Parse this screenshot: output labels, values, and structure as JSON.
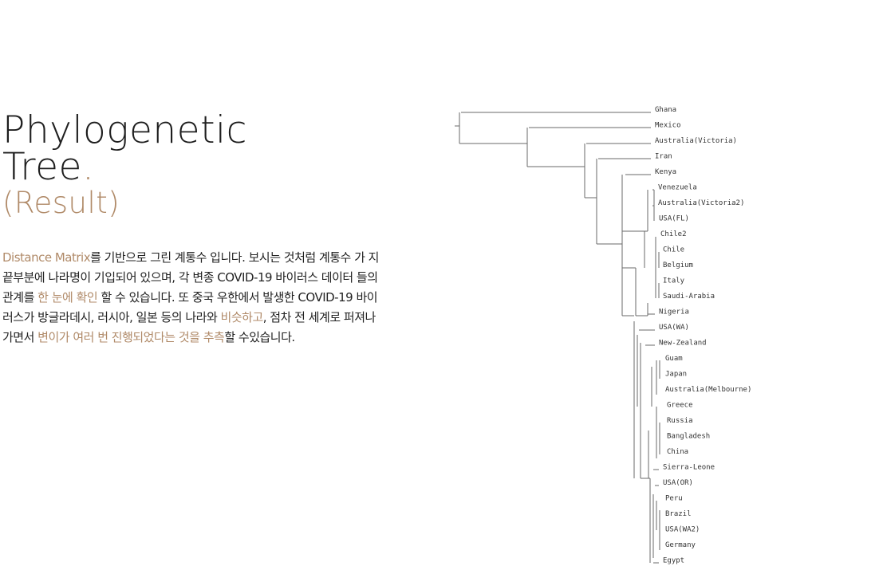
{
  "title": {
    "line1": "Phylogenetic",
    "line2": "Tree",
    "dot": ".",
    "subtitle": "(Result)"
  },
  "description": {
    "segments": [
      {
        "text": "Distance Matrix",
        "highlight": true
      },
      {
        "text": "를 기반으로 그린 계통수 입니다. 보시는 것처럼 계통수 가 지 끝부분에 나라명이 기입되어 있으며, 각 변종 COVID-19 바이러스 데이터 들의 관계를 ",
        "highlight": false
      },
      {
        "text": "한 눈에 확인",
        "highlight": true
      },
      {
        "text": " 할 수 있습니다. 또 중국 우한에서 발생한 COVID-19 바이 러스가 방글라데시, 러시아, 일본 등의 나라와 ",
        "highlight": false
      },
      {
        "text": "비슷하고",
        "highlight": true
      },
      {
        "text": ", 점차 전 세계로 퍼져나 가면서 ",
        "highlight": false
      },
      {
        "text": "변이가 여러 번 진행되었다는 것을 추측",
        "highlight": true
      },
      {
        "text": "할 수있습니다.",
        "highlight": false
      }
    ]
  },
  "tree": {
    "leaves": [
      "Ghana",
      "Mexico",
      "Australia(Victoria)",
      "Iran",
      "Kenya",
      "Venezuela",
      "Australia(Victoria2)",
      "USA(FL)",
      "Chile2",
      "Chile",
      "Belgium",
      "Italy",
      "Saudi-Arabia",
      "Nigeria",
      "USA(WA)",
      "New-Zealand",
      "Guam",
      "Japan",
      "Australia(Melbourne)",
      "Greece",
      "Russia",
      "Bangladesh",
      "China",
      "Sierra-Leone",
      "USA(OR)",
      "Peru",
      "Brazil",
      "USA(WA2)",
      "Germany",
      "Egypt"
    ],
    "colors": {
      "accent": "#b08a68",
      "text": "#1e1e1e",
      "branch": "#6a6a6a"
    }
  }
}
